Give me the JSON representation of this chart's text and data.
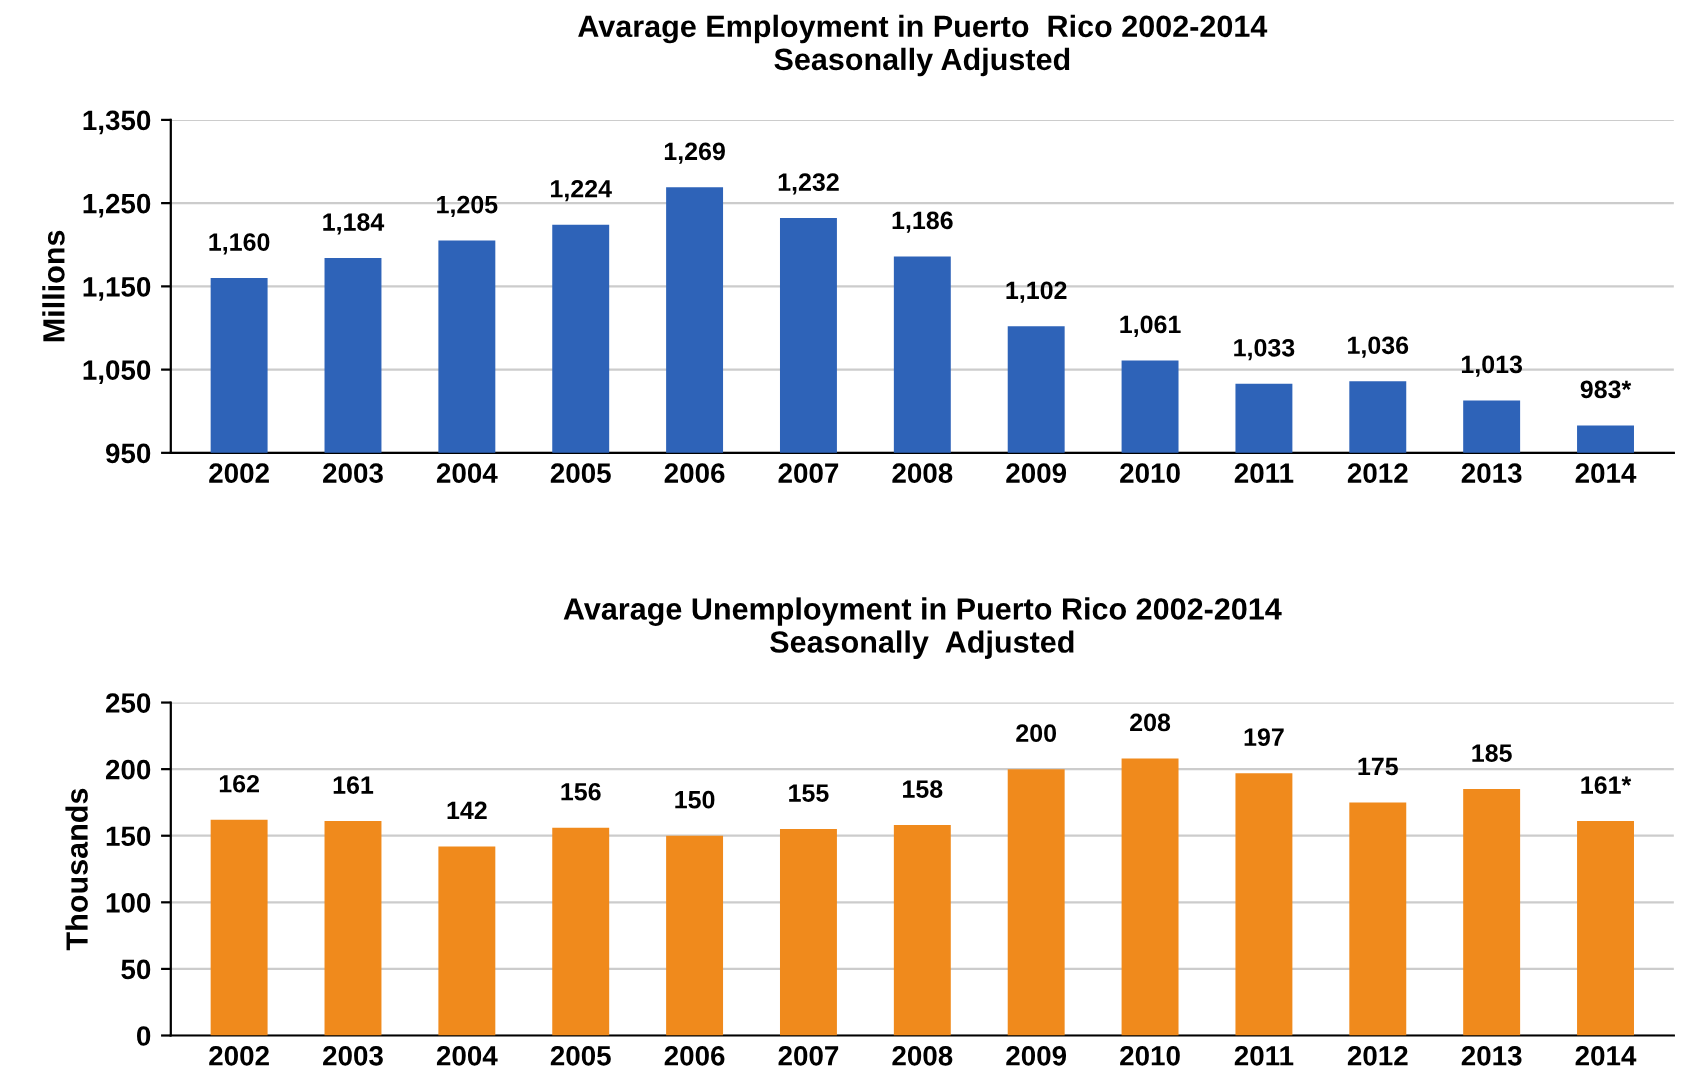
{
  "chart_data": [
    {
      "type": "bar",
      "title": "Avarage Employment in Puerto  Rico 2002-2014\nSeasonally Adjusted",
      "ylabel": "Millions",
      "categories": [
        "2002",
        "2003",
        "2004",
        "2005",
        "2006",
        "2007",
        "2008",
        "2009",
        "2010",
        "2011",
        "2012",
        "2013",
        "2014"
      ],
      "values": [
        1160,
        1184,
        1205,
        1224,
        1269,
        1232,
        1186,
        1102,
        1061,
        1033,
        1036,
        1013,
        983
      ],
      "value_labels": [
        "1,160",
        "1,184",
        "1,205",
        "1,224",
        "1,269",
        "1,232",
        "1,186",
        "1,102",
        "1,061",
        "1,033",
        "1,036",
        "1,013",
        "983*"
      ],
      "color": "#2e63b8",
      "ylim": [
        950,
        1350
      ],
      "yticks": [
        {
          "value": 950,
          "label": "950"
        },
        {
          "value": 1050,
          "label": "1,050"
        },
        {
          "value": 1150,
          "label": "1,150"
        },
        {
          "value": 1250,
          "label": "1,250"
        },
        {
          "value": 1350,
          "label": "1,350"
        }
      ],
      "grid": "y"
    },
    {
      "type": "bar",
      "title": "Avarage Unemployment in Puerto Rico 2002-2014\nSeasonally  Adjusted",
      "ylabel": "Thousands",
      "categories": [
        "2002",
        "2003",
        "2004",
        "2005",
        "2006",
        "2007",
        "2008",
        "2009",
        "2010",
        "2011",
        "2012",
        "2013",
        "2014"
      ],
      "values": [
        162,
        161,
        142,
        156,
        150,
        155,
        158,
        200,
        208,
        197,
        175,
        185,
        161
      ],
      "value_labels": [
        "162",
        "161",
        "142",
        "156",
        "150",
        "155",
        "158",
        "200",
        "208",
        "197",
        "175",
        "185",
        "161*"
      ],
      "color": "#f08a1c",
      "ylim": [
        0,
        250
      ],
      "yticks": [
        0,
        50,
        100,
        150,
        200,
        250
      ],
      "grid": "y"
    }
  ]
}
